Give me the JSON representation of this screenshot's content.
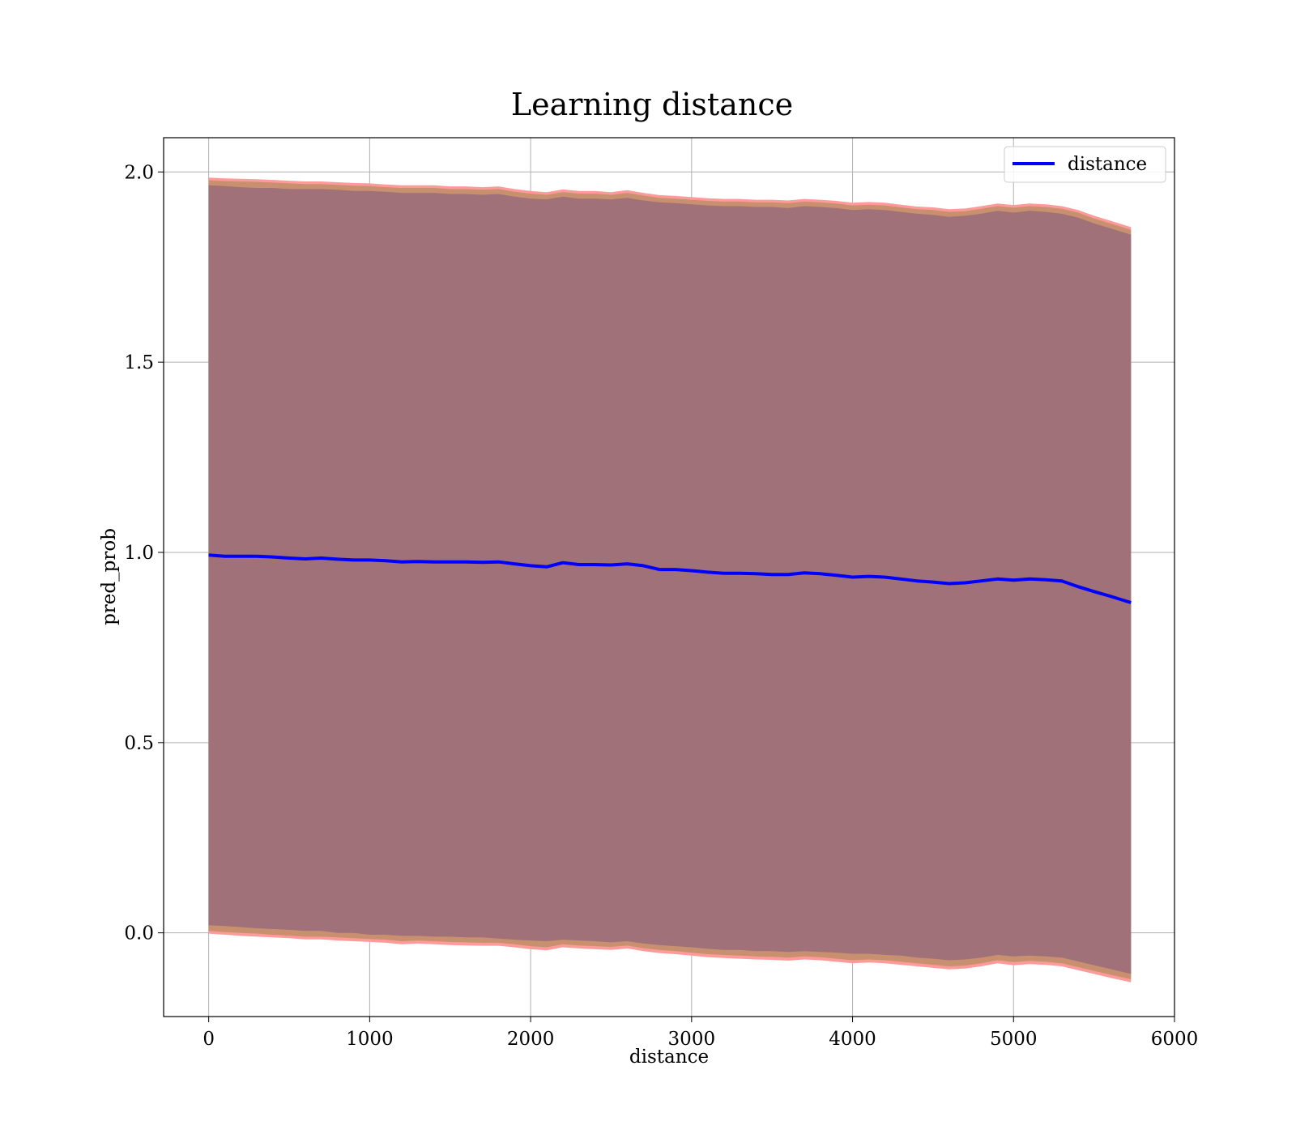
{
  "chart_data": {
    "type": "line",
    "title": "Learning distance",
    "xlabel": "distance",
    "ylabel": "pred_prob",
    "xlim": [
      -280,
      6000
    ],
    "ylim": [
      -0.22,
      2.09
    ],
    "xticks": [
      0,
      1000,
      2000,
      3000,
      4000,
      5000,
      6000
    ],
    "xtick_labels": [
      "0",
      "1000",
      "2000",
      "3000",
      "4000",
      "5000",
      "6000"
    ],
    "yticks": [
      0.0,
      0.5,
      1.0,
      1.5,
      2.0
    ],
    "ytick_labels": [
      "0.0",
      "0.5",
      "1.0",
      "1.5",
      "2.0"
    ],
    "grid": true,
    "legend": {
      "position": "top-right",
      "entries": [
        "distance"
      ]
    },
    "colors": {
      "line": "#0000ff",
      "band_outer": "#ff9a9a",
      "band_middle": "#c8906e",
      "band_inner": "#a1717a"
    },
    "series": [
      {
        "name": "distance",
        "x": [
          0,
          100,
          200,
          300,
          400,
          500,
          600,
          700,
          800,
          900,
          1000,
          1100,
          1200,
          1300,
          1400,
          1500,
          1600,
          1700,
          1800,
          1900,
          2000,
          2100,
          2200,
          2300,
          2400,
          2500,
          2600,
          2700,
          2800,
          2900,
          3000,
          3100,
          3200,
          3300,
          3400,
          3500,
          3600,
          3700,
          3800,
          3900,
          4000,
          4100,
          4200,
          4300,
          4400,
          4500,
          4600,
          4700,
          4800,
          4900,
          5000,
          5100,
          5200,
          5300,
          5400,
          5500,
          5600,
          5730
        ],
        "values": [
          0.993,
          0.99,
          0.99,
          0.99,
          0.988,
          0.985,
          0.983,
          0.985,
          0.982,
          0.98,
          0.98,
          0.978,
          0.975,
          0.976,
          0.975,
          0.975,
          0.975,
          0.974,
          0.975,
          0.97,
          0.965,
          0.962,
          0.973,
          0.968,
          0.968,
          0.967,
          0.97,
          0.965,
          0.955,
          0.955,
          0.952,
          0.948,
          0.945,
          0.945,
          0.944,
          0.942,
          0.942,
          0.946,
          0.944,
          0.94,
          0.935,
          0.937,
          0.935,
          0.93,
          0.925,
          0.922,
          0.918,
          0.92,
          0.925,
          0.93,
          0.927,
          0.93,
          0.928,
          0.925,
          0.91,
          0.897,
          0.885,
          0.868
        ],
        "band_inner": {
          "lower": [
            0.02,
            0.018,
            0.015,
            0.012,
            0.01,
            0.008,
            0.005,
            0.005,
            0.0,
            0.0,
            -0.005,
            -0.005,
            -0.008,
            -0.008,
            -0.01,
            -0.01,
            -0.012,
            -0.012,
            -0.015,
            -0.018,
            -0.02,
            -0.022,
            -0.018,
            -0.02,
            -0.022,
            -0.025,
            -0.022,
            -0.028,
            -0.032,
            -0.035,
            -0.038,
            -0.042,
            -0.045,
            -0.045,
            -0.048,
            -0.048,
            -0.05,
            -0.048,
            -0.05,
            -0.052,
            -0.055,
            -0.055,
            -0.058,
            -0.06,
            -0.065,
            -0.068,
            -0.072,
            -0.07,
            -0.065,
            -0.058,
            -0.062,
            -0.06,
            -0.062,
            -0.065,
            -0.075,
            -0.085,
            -0.095,
            -0.108
          ],
          "upper": [
            1.965,
            1.963,
            1.96,
            1.958,
            1.958,
            1.955,
            1.955,
            1.955,
            1.953,
            1.95,
            1.95,
            1.948,
            1.945,
            1.945,
            1.945,
            1.942,
            1.942,
            1.94,
            1.942,
            1.935,
            1.93,
            1.928,
            1.935,
            1.93,
            1.93,
            1.928,
            1.932,
            1.925,
            1.92,
            1.918,
            1.915,
            1.912,
            1.91,
            1.91,
            1.908,
            1.908,
            1.905,
            1.91,
            1.908,
            1.905,
            1.9,
            1.902,
            1.9,
            1.895,
            1.89,
            1.887,
            1.882,
            1.885,
            1.89,
            1.898,
            1.893,
            1.898,
            1.895,
            1.89,
            1.88,
            1.865,
            1.852,
            1.835
          ]
        },
        "band_middle": {
          "lower": [
            0.005,
            0.002,
            0.0,
            -0.002,
            -0.005,
            -0.007,
            -0.01,
            -0.01,
            -0.012,
            -0.014,
            -0.016,
            -0.018,
            -0.022,
            -0.02,
            -0.022,
            -0.024,
            -0.025,
            -0.026,
            -0.026,
            -0.03,
            -0.035,
            -0.038,
            -0.03,
            -0.033,
            -0.035,
            -0.037,
            -0.033,
            -0.04,
            -0.045,
            -0.048,
            -0.052,
            -0.056,
            -0.058,
            -0.06,
            -0.062,
            -0.063,
            -0.065,
            -0.062,
            -0.064,
            -0.068,
            -0.072,
            -0.07,
            -0.072,
            -0.076,
            -0.08,
            -0.084,
            -0.088,
            -0.086,
            -0.08,
            -0.072,
            -0.077,
            -0.074,
            -0.076,
            -0.08,
            -0.09,
            -0.1,
            -0.11,
            -0.122
          ],
          "upper": [
            1.978,
            1.976,
            1.975,
            1.974,
            1.972,
            1.97,
            1.968,
            1.968,
            1.966,
            1.964,
            1.963,
            1.96,
            1.958,
            1.958,
            1.958,
            1.955,
            1.955,
            1.953,
            1.955,
            1.948,
            1.943,
            1.94,
            1.947,
            1.943,
            1.943,
            1.94,
            1.945,
            1.938,
            1.932,
            1.93,
            1.927,
            1.924,
            1.922,
            1.922,
            1.92,
            1.92,
            1.918,
            1.922,
            1.92,
            1.917,
            1.912,
            1.914,
            1.912,
            1.907,
            1.902,
            1.9,
            1.895,
            1.897,
            1.903,
            1.91,
            1.906,
            1.91,
            1.908,
            1.903,
            1.893,
            1.878,
            1.865,
            1.848
          ]
        },
        "band_outer": {
          "lower": [
            -0.002,
            -0.005,
            -0.008,
            -0.01,
            -0.012,
            -0.014,
            -0.017,
            -0.017,
            -0.02,
            -0.022,
            -0.024,
            -0.026,
            -0.03,
            -0.028,
            -0.03,
            -0.032,
            -0.033,
            -0.034,
            -0.034,
            -0.038,
            -0.043,
            -0.046,
            -0.038,
            -0.041,
            -0.043,
            -0.045,
            -0.041,
            -0.048,
            -0.053,
            -0.056,
            -0.06,
            -0.064,
            -0.066,
            -0.068,
            -0.07,
            -0.071,
            -0.073,
            -0.07,
            -0.072,
            -0.076,
            -0.08,
            -0.078,
            -0.08,
            -0.084,
            -0.088,
            -0.092,
            -0.096,
            -0.094,
            -0.088,
            -0.08,
            -0.085,
            -0.082,
            -0.084,
            -0.088,
            -0.098,
            -0.108,
            -0.118,
            -0.13
          ],
          "upper": [
            1.985,
            1.983,
            1.982,
            1.981,
            1.979,
            1.977,
            1.975,
            1.975,
            1.973,
            1.971,
            1.97,
            1.967,
            1.965,
            1.965,
            1.965,
            1.962,
            1.962,
            1.96,
            1.962,
            1.955,
            1.95,
            1.947,
            1.954,
            1.95,
            1.95,
            1.947,
            1.952,
            1.945,
            1.939,
            1.937,
            1.934,
            1.931,
            1.929,
            1.929,
            1.927,
            1.927,
            1.925,
            1.929,
            1.927,
            1.924,
            1.919,
            1.921,
            1.919,
            1.914,
            1.909,
            1.907,
            1.902,
            1.904,
            1.91,
            1.917,
            1.913,
            1.917,
            1.915,
            1.91,
            1.9,
            1.885,
            1.872,
            1.855
          ]
        }
      }
    ]
  }
}
